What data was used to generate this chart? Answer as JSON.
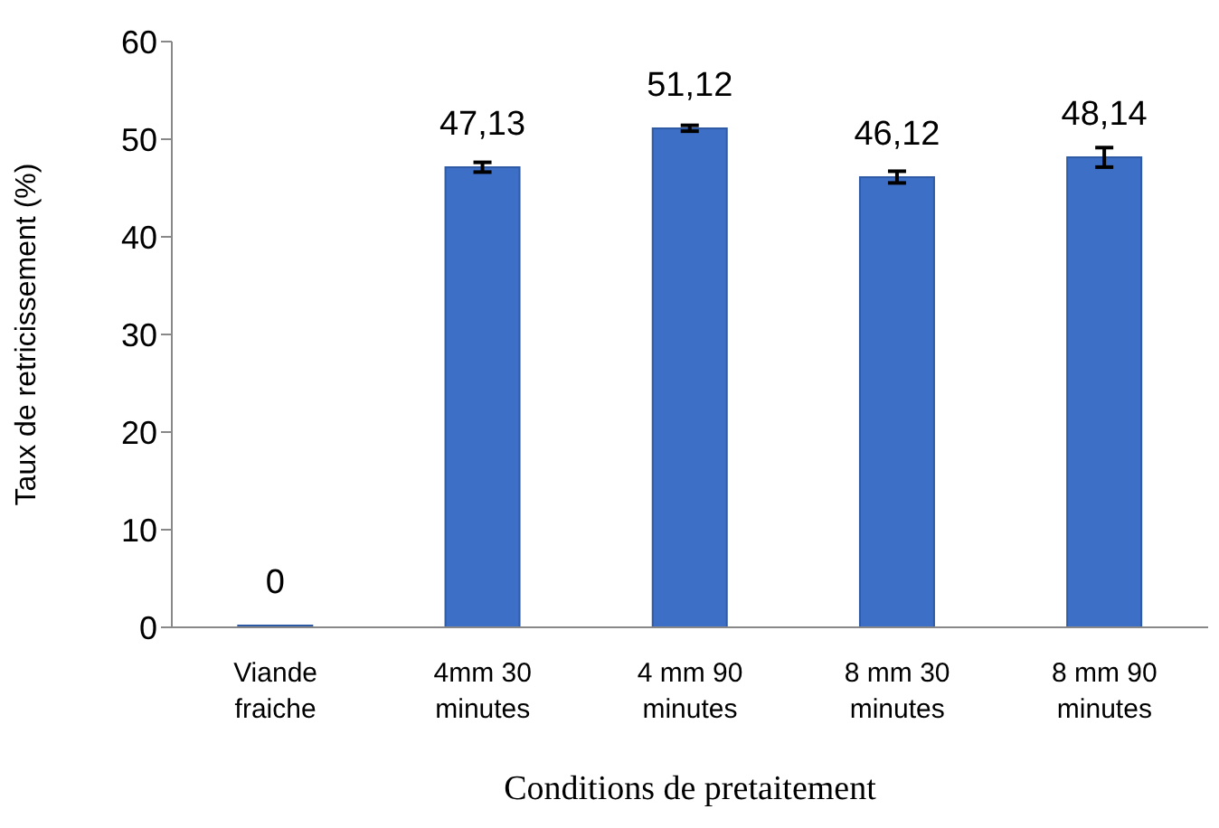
{
  "chart_data": {
    "type": "bar",
    "xlabel": "Conditions de pretaitement",
    "ylabel": "Taux de retricissement (%)",
    "categories": [
      "Viande fraiche",
      "4mm 30 minutes",
      "4 mm 90 minutes",
      "8 mm 30 minutes",
      "8 mm 90 minutes"
    ],
    "values": [
      0,
      47.13,
      51.12,
      46.12,
      48.14
    ],
    "errors": [
      null,
      0.5,
      0.3,
      0.6,
      1.0
    ],
    "value_labels": [
      "0",
      "47,13",
      "51,12",
      "46,12",
      "48,14"
    ],
    "color": "#3d6fc6",
    "ylim": [
      0,
      60
    ],
    "yticks": [
      0,
      10,
      20,
      30,
      40,
      50,
      60
    ]
  }
}
